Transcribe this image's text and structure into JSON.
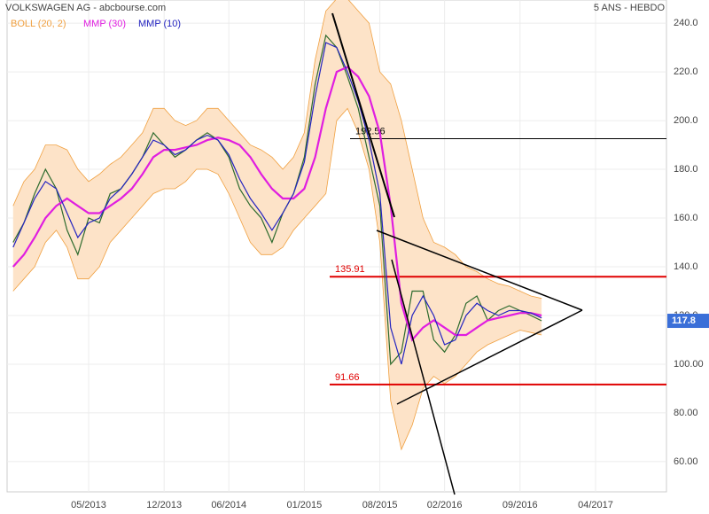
{
  "chart_data": {
    "type": "line",
    "title": "VOLKSWAGEN AG - abcbourse.com",
    "subtitle": "5 ANS - HEBDO",
    "x": [
      "2012-10",
      "2012-11",
      "2012-12",
      "2013-01",
      "2013-02",
      "2013-03",
      "2013-04",
      "2013-05",
      "2013-06",
      "2013-07",
      "2013-08",
      "2013-09",
      "2013-10",
      "2013-11",
      "2013-12",
      "2014-01",
      "2014-02",
      "2014-03",
      "2014-04",
      "2014-05",
      "2014-06",
      "2014-07",
      "2014-08",
      "2014-09",
      "2014-10",
      "2014-11",
      "2014-12",
      "2015-01",
      "2015-02",
      "2015-03",
      "2015-04",
      "2015-05",
      "2015-06",
      "2015-07",
      "2015-08",
      "2015-09",
      "2015-10",
      "2015-11",
      "2015-12",
      "2016-01",
      "2016-02",
      "2016-03",
      "2016-04",
      "2016-05",
      "2016-06",
      "2016-07",
      "2016-08",
      "2016-09",
      "2016-10",
      "2016-11"
    ],
    "band": {
      "name": "BOLL (20, 2)",
      "color": "#f0a040",
      "fill": "#fde3c8",
      "upper": [
        165,
        175,
        180,
        190,
        190,
        188,
        180,
        175,
        178,
        182,
        185,
        190,
        195,
        205,
        205,
        200,
        198,
        200,
        205,
        205,
        200,
        195,
        190,
        188,
        185,
        180,
        185,
        195,
        225,
        245,
        250,
        250,
        245,
        240,
        220,
        215,
        200,
        180,
        160,
        150,
        148,
        145,
        140,
        138,
        135,
        133,
        132,
        130,
        128,
        127
      ],
      "lower": [
        130,
        135,
        140,
        150,
        155,
        148,
        135,
        135,
        140,
        150,
        155,
        160,
        165,
        170,
        172,
        172,
        175,
        180,
        180,
        178,
        170,
        160,
        150,
        145,
        145,
        148,
        155,
        160,
        165,
        170,
        200,
        205,
        195,
        180,
        150,
        85,
        65,
        75,
        90,
        95,
        92,
        95,
        100,
        105,
        108,
        110,
        112,
        114,
        113,
        112
      ]
    },
    "series": [
      {
        "color": "#2e6b2e",
        "values": [
          150,
          158,
          170,
          180,
          172,
          155,
          145,
          160,
          158,
          170,
          172,
          178,
          185,
          195,
          190,
          185,
          188,
          192,
          195,
          192,
          185,
          172,
          165,
          160,
          150,
          162,
          170,
          185,
          215,
          235,
          230,
          218,
          205,
          185,
          165,
          100,
          105,
          130,
          130,
          110,
          105,
          112,
          125,
          128,
          118,
          122,
          124,
          122,
          120,
          117.8
        ]
      },
      {
        "name": "MMP (30)",
        "color": "#e01ee0",
        "values": [
          140,
          145,
          152,
          160,
          165,
          168,
          165,
          162,
          162,
          165,
          168,
          172,
          178,
          185,
          188,
          188,
          189,
          190,
          192,
          193,
          192,
          190,
          185,
          178,
          172,
          168,
          168,
          172,
          185,
          205,
          220,
          222,
          218,
          210,
          195,
          165,
          125,
          110,
          115,
          118,
          115,
          112,
          112,
          115,
          118,
          119,
          120,
          121,
          121,
          120
        ]
      },
      {
        "name": "MMP (10)",
        "color": "#2424c0",
        "values": [
          148,
          158,
          168,
          175,
          172,
          162,
          152,
          158,
          160,
          168,
          172,
          178,
          185,
          192,
          190,
          186,
          188,
          192,
          194,
          192,
          186,
          176,
          168,
          162,
          155,
          162,
          170,
          183,
          210,
          232,
          230,
          220,
          208,
          192,
          170,
          115,
          100,
          120,
          128,
          120,
          108,
          110,
          120,
          125,
          122,
          120,
          122,
          122,
          121,
          119
        ]
      }
    ],
    "levels": [
      192.56,
      135.91,
      91.66
    ],
    "level_colors": [
      "#000000",
      "#e00000",
      "#e00000"
    ],
    "last": 117.8,
    "last_color": "#3a6fd8",
    "ylim": [
      47.6,
      249.5
    ],
    "yticks": [
      {
        "value": 240,
        "label": "240.0"
      },
      {
        "value": 220,
        "label": "220.0"
      },
      {
        "value": 200,
        "label": "200.0"
      },
      {
        "value": 180,
        "label": "180.0"
      },
      {
        "value": 160,
        "label": "160.0"
      },
      {
        "value": 140,
        "label": "140.0"
      },
      {
        "value": 120,
        "label": "120.0"
      },
      {
        "value": 100,
        "label": "100.00"
      },
      {
        "value": 80,
        "label": "80.00"
      },
      {
        "value": 60,
        "label": "60.00"
      }
    ],
    "xticks": [
      {
        "value": "2013-05",
        "label": "05/2013"
      },
      {
        "value": "2013-12",
        "label": "12/2013"
      },
      {
        "value": "2014-06",
        "label": "06/2014"
      },
      {
        "value": "2015-01",
        "label": "01/2015"
      },
      {
        "value": "2015-08",
        "label": "08/2015"
      },
      {
        "value": "2016-02",
        "label": "02/2016"
      },
      {
        "value": "2016-09",
        "label": "09/2016"
      },
      {
        "value": "2017-04",
        "label": "04/2017"
      }
    ],
    "grid": true
  }
}
